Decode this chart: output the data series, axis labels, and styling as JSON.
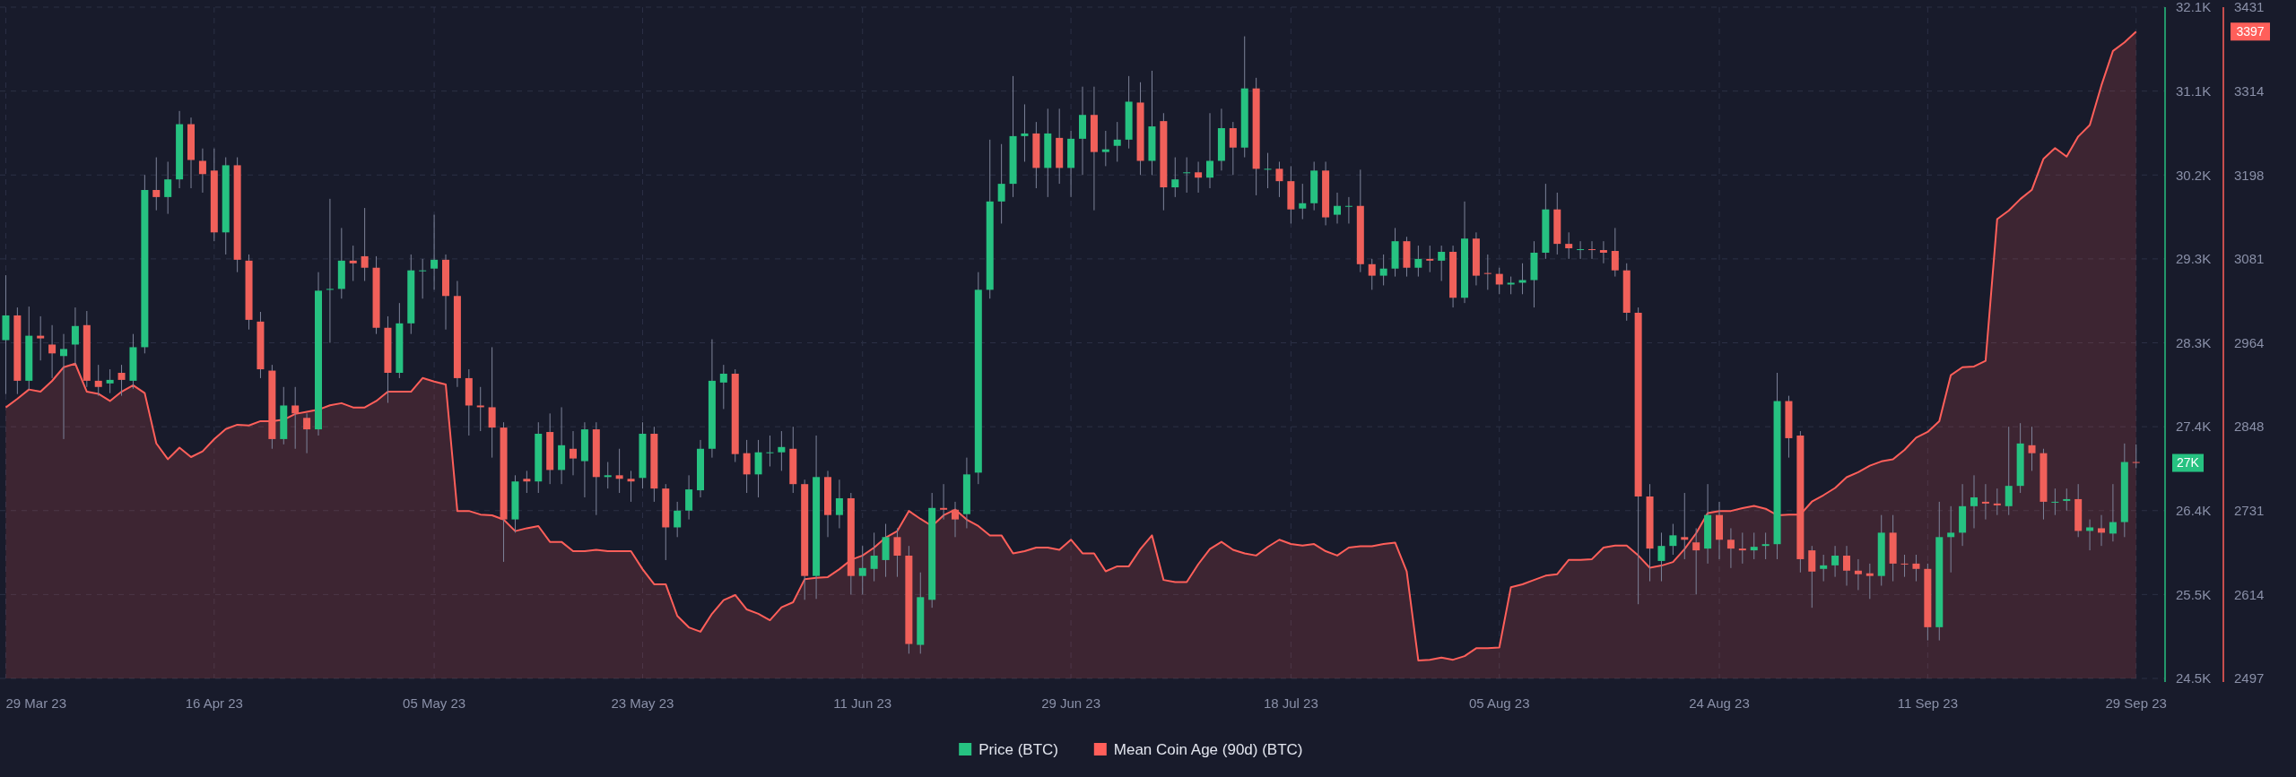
{
  "chart_data": {
    "type": "candlestick",
    "grid": true,
    "annotations": [
      "3397"
    ],
    "legend": "bottom",
    "x": [
      "2023-03-29",
      "2023-03-30",
      "2023-03-31",
      "2023-04-01",
      "2023-04-02",
      "2023-04-03",
      "2023-04-04",
      "2023-04-05",
      "2023-04-06",
      "2023-04-07",
      "2023-04-08",
      "2023-04-09",
      "2023-04-10",
      "2023-04-11",
      "2023-04-12",
      "2023-04-13",
      "2023-04-14",
      "2023-04-15",
      "2023-04-16",
      "2023-04-17",
      "2023-04-18",
      "2023-04-19",
      "2023-04-20",
      "2023-04-21",
      "2023-04-22",
      "2023-04-23",
      "2023-04-24",
      "2023-04-25",
      "2023-04-26",
      "2023-04-27",
      "2023-04-28",
      "2023-04-29",
      "2023-04-30",
      "2023-05-01",
      "2023-05-02",
      "2023-05-03",
      "2023-05-04",
      "2023-05-05",
      "2023-05-06",
      "2023-05-07",
      "2023-05-08",
      "2023-05-09",
      "2023-05-10",
      "2023-05-11",
      "2023-05-12",
      "2023-05-13",
      "2023-05-14",
      "2023-05-15",
      "2023-05-16",
      "2023-05-17",
      "2023-05-18",
      "2023-05-19",
      "2023-05-20",
      "2023-05-21",
      "2023-05-22",
      "2023-05-23",
      "2023-05-24",
      "2023-05-25",
      "2023-05-26",
      "2023-05-27",
      "2023-05-28",
      "2023-05-29",
      "2023-05-30",
      "2023-05-31",
      "2023-06-01",
      "2023-06-02",
      "2023-06-03",
      "2023-06-04",
      "2023-06-05",
      "2023-06-06",
      "2023-06-07",
      "2023-06-08",
      "2023-06-09",
      "2023-06-10",
      "2023-06-11",
      "2023-06-12",
      "2023-06-13",
      "2023-06-14",
      "2023-06-15",
      "2023-06-16",
      "2023-06-17",
      "2023-06-18",
      "2023-06-19",
      "2023-06-20",
      "2023-06-21",
      "2023-06-22",
      "2023-06-23",
      "2023-06-24",
      "2023-06-25",
      "2023-06-26",
      "2023-06-27",
      "2023-06-28",
      "2023-06-29",
      "2023-06-30",
      "2023-07-01",
      "2023-07-02",
      "2023-07-03",
      "2023-07-04",
      "2023-07-05",
      "2023-07-06",
      "2023-07-07",
      "2023-07-08",
      "2023-07-09",
      "2023-07-10",
      "2023-07-11",
      "2023-07-12",
      "2023-07-13",
      "2023-07-14",
      "2023-07-15",
      "2023-07-16",
      "2023-07-17",
      "2023-07-18",
      "2023-07-19",
      "2023-07-20",
      "2023-07-21",
      "2023-07-22",
      "2023-07-23",
      "2023-07-24",
      "2023-07-25",
      "2023-07-26",
      "2023-07-27",
      "2023-07-28",
      "2023-07-29",
      "2023-07-30",
      "2023-07-31",
      "2023-08-01",
      "2023-08-02",
      "2023-08-03",
      "2023-08-04",
      "2023-08-05",
      "2023-08-06",
      "2023-08-07",
      "2023-08-08",
      "2023-08-09",
      "2023-08-10",
      "2023-08-11",
      "2023-08-12",
      "2023-08-13",
      "2023-08-14",
      "2023-08-15",
      "2023-08-16",
      "2023-08-17",
      "2023-08-18",
      "2023-08-19",
      "2023-08-20",
      "2023-08-21",
      "2023-08-22",
      "2023-08-23",
      "2023-08-24",
      "2023-08-25",
      "2023-08-26",
      "2023-08-27",
      "2023-08-28",
      "2023-08-29",
      "2023-08-30",
      "2023-08-31",
      "2023-09-01",
      "2023-09-02",
      "2023-09-03",
      "2023-09-04",
      "2023-09-05",
      "2023-09-06",
      "2023-09-07",
      "2023-09-08",
      "2023-09-09",
      "2023-09-10",
      "2023-09-11",
      "2023-09-12",
      "2023-09-13",
      "2023-09-14",
      "2023-09-15",
      "2023-09-16",
      "2023-09-17",
      "2023-09-18",
      "2023-09-19",
      "2023-09-20",
      "2023-09-21",
      "2023-09-22",
      "2023-09-23",
      "2023-09-24",
      "2023-09-25",
      "2023-09-26",
      "2023-09-27",
      "2023-09-28",
      "2023-09-29"
    ],
    "xlim": [
      "2023-03-28T12:00",
      "2023-10-01T12:00"
    ],
    "xticks": [
      {
        "value": "2023-03-29",
        "label": "29 Mar 23"
      },
      {
        "value": "2023-04-16",
        "label": "16 Apr 23"
      },
      {
        "value": "2023-05-05",
        "label": "05 May 23"
      },
      {
        "value": "2023-05-23",
        "label": "23 May 23"
      },
      {
        "value": "2023-06-11",
        "label": "11 Jun 23"
      },
      {
        "value": "2023-06-29",
        "label": "29 Jun 23"
      },
      {
        "value": "2023-07-18",
        "label": "18 Jul 23"
      },
      {
        "value": "2023-08-05",
        "label": "05 Aug 23"
      },
      {
        "value": "2023-08-24",
        "label": "24 Aug 23"
      },
      {
        "value": "2023-09-11",
        "label": "11 Sep 23"
      },
      {
        "value": "2023-09-29",
        "label": "29 Sep 23"
      }
    ],
    "ylim": [
      24500,
      32100
    ],
    "yticks": [
      {
        "value": 24500,
        "label": "24.5K"
      },
      {
        "value": 25450,
        "label": "25.5K"
      },
      {
        "value": 26400,
        "label": "26.4K"
      },
      {
        "value": 27350,
        "label": "27.4K"
      },
      {
        "value": 28300,
        "label": "28.3K"
      },
      {
        "value": 29250,
        "label": "29.3K"
      },
      {
        "value": 30200,
        "label": "30.2K"
      },
      {
        "value": 31150,
        "label": "31.1K"
      },
      {
        "value": 32100,
        "label": "32.1K"
      }
    ],
    "y2lim": [
      2497,
      3431
    ],
    "y2ticks": [
      2497,
      {
        "value": 2613.75,
        "label": "2614"
      },
      {
        "value": 2730.5,
        "label": "2731"
      },
      {
        "value": 2848,
        "label": "2848"
      },
      2964,
      {
        "value": 3080.75,
        "label": "3081"
      },
      {
        "value": 3197.5,
        "label": "3198"
      },
      {
        "value": 3314.25,
        "label": "3314"
      },
      3431
    ],
    "series": [
      {
        "name": "Price (BTC)",
        "color": "#26c281",
        "colors": [
          "#26c281",
          "#f0605a",
          "#26c281",
          "#f0605a",
          "#f0605a",
          "#26c281",
          "#26c281",
          "#f0605a",
          "#f0605a",
          "#26c281",
          "#f0605a",
          "#26c281",
          "#26c281",
          "#f0605a",
          "#26c281",
          "#26c281",
          "#f0605a",
          "#f0605a",
          "#f0605a",
          "#26c281",
          "#f0605a",
          "#f0605a",
          "#f0605a",
          "#f0605a",
          "#26c281",
          "#f0605a",
          "#f0605a",
          "#26c281",
          "#26c281",
          "#26c281",
          "#f0605a",
          "#f0605a",
          "#f0605a",
          "#f0605a",
          "#26c281",
          "#26c281",
          "#26c281",
          "#26c281",
          "#f0605a",
          "#f0605a",
          "#f0605a",
          "#f0605a",
          "#f0605a",
          "#f0605a",
          "#26c281",
          "#f0605a",
          "#26c281",
          "#f0605a",
          "#26c281",
          "#f0605a",
          "#26c281",
          "#f0605a",
          "#26c281",
          "#f0605a",
          "#f0605a",
          "#26c281",
          "#f0605a",
          "#f0605a",
          "#26c281",
          "#26c281",
          "#26c281",
          "#26c281",
          "#26c281",
          "#f0605a",
          "#f0605a",
          "#26c281",
          "#26c281",
          "#26c281",
          "#f0605a",
          "#f0605a",
          "#26c281",
          "#f0605a",
          "#26c281",
          "#f0605a",
          "#26c281",
          "#26c281",
          "#26c281",
          "#f0605a",
          "#f0605a",
          "#26c281",
          "#26c281",
          "#f0605a",
          "#f0605a",
          "#26c281",
          "#26c281",
          "#26c281",
          "#26c281",
          "#26c281",
          "#26c281",
          "#f0605a",
          "#26c281",
          "#f0605a",
          "#26c281",
          "#26c281",
          "#f0605a",
          "#26c281",
          "#26c281",
          "#26c281",
          "#f0605a",
          "#26c281",
          "#f0605a",
          "#26c281",
          "#26c281",
          "#f0605a",
          "#26c281",
          "#26c281",
          "#f0605a",
          "#26c281",
          "#f0605a",
          "#26c281",
          "#f0605a",
          "#f0605a",
          "#26c281",
          "#26c281",
          "#f0605a",
          "#26c281",
          "#26c281",
          "#f0605a",
          "#f0605a",
          "#26c281",
          "#26c281",
          "#f0605a",
          "#26c281",
          "#f0605a",
          "#26c281",
          "#f0605a",
          "#26c281",
          "#f0605a",
          "#f0605a",
          "#f0605a",
          "#26c281",
          "#26c281",
          "#26c281",
          "#26c281",
          "#f0605a",
          "#f0605a",
          "#26c281",
          "#f0605a",
          "#f0605a",
          "#f0605a",
          "#f0605a",
          "#f0605a",
          "#f0605a",
          "#26c281",
          "#26c281",
          "#f0605a",
          "#f0605a",
          "#26c281",
          "#f0605a",
          "#f0605a",
          "#f0605a",
          "#26c281",
          "#26c281",
          "#26c281",
          "#f0605a",
          "#f0605a",
          "#f0605a",
          "#26c281",
          "#26c281",
          "#f0605a",
          "#f0605a",
          "#f0605a",
          "#26c281",
          "#f0605a",
          "#f0605a",
          "#f0605a",
          "#f0605a",
          "#26c281",
          "#26c281",
          "#26c281",
          "#26c281",
          "#f0605a",
          "#f0605a",
          "#26c281",
          "#26c281",
          "#f0605a",
          "#f0605a",
          "#26c281",
          "#26c281",
          "#f0605a",
          "#26c281",
          "#f0605a",
          "#26c281",
          "#26c281",
          "#f0605a"
        ],
        "ohlc": [
          [
            28330,
            29065,
            27720,
            28610
          ],
          [
            28610,
            28700,
            27720,
            27870
          ],
          [
            27870,
            28710,
            27770,
            28380
          ],
          [
            28380,
            28600,
            28100,
            28350
          ],
          [
            28280,
            28500,
            27900,
            28180
          ],
          [
            28150,
            28400,
            27210,
            28230
          ],
          [
            28280,
            28700,
            28050,
            28490
          ],
          [
            28500,
            28660,
            27800,
            27870
          ],
          [
            27870,
            28050,
            27700,
            27800
          ],
          [
            27840,
            28000,
            27730,
            27880
          ],
          [
            27960,
            28050,
            27700,
            27880
          ],
          [
            27870,
            28400,
            27780,
            28250
          ],
          [
            28250,
            30200,
            28180,
            30030
          ],
          [
            30030,
            30400,
            29800,
            29950
          ],
          [
            29950,
            30350,
            29760,
            30150
          ],
          [
            30150,
            30925,
            30050,
            30775
          ],
          [
            30775,
            30850,
            30050,
            30370
          ],
          [
            30360,
            30500,
            30000,
            30210
          ],
          [
            30250,
            30500,
            29450,
            29550
          ],
          [
            29550,
            30400,
            29300,
            30310
          ],
          [
            30310,
            30400,
            29100,
            29240
          ],
          [
            29230,
            29300,
            28450,
            28560
          ],
          [
            28540,
            28650,
            27900,
            28000
          ],
          [
            27985,
            28050,
            27100,
            27210
          ],
          [
            27210,
            27800,
            27150,
            27590
          ],
          [
            27590,
            27800,
            27100,
            27500
          ],
          [
            27450,
            27500,
            27050,
            27320
          ],
          [
            27320,
            29100,
            27250,
            28890
          ],
          [
            28910,
            29930,
            28300,
            28910
          ],
          [
            28910,
            29600,
            28800,
            29230
          ],
          [
            29230,
            29400,
            29000,
            29200
          ],
          [
            29280,
            29826,
            29000,
            29150
          ],
          [
            29150,
            29280,
            28400,
            28470
          ],
          [
            28470,
            28600,
            27620,
            27960
          ],
          [
            27960,
            28750,
            27900,
            28520
          ],
          [
            28520,
            29300,
            28400,
            29120
          ],
          [
            29120,
            29250,
            28800,
            29120
          ],
          [
            29140,
            29750,
            28900,
            29240
          ],
          [
            29240,
            29300,
            28450,
            28830
          ],
          [
            28830,
            29000,
            27800,
            27900
          ],
          [
            27900,
            28000,
            27250,
            27590
          ],
          [
            27590,
            27800,
            27300,
            27570
          ],
          [
            27570,
            28250,
            27000,
            27340
          ],
          [
            27340,
            27400,
            25820,
            26300
          ],
          [
            26300,
            26800,
            26150,
            26730
          ],
          [
            26760,
            26850,
            26600,
            26730
          ],
          [
            26730,
            27400,
            26600,
            27270
          ],
          [
            27290,
            27500,
            26700,
            26860
          ],
          [
            26860,
            27570,
            26700,
            27140
          ],
          [
            27100,
            27300,
            26800,
            26990
          ],
          [
            26960,
            27400,
            26550,
            27320
          ],
          [
            27320,
            27400,
            26350,
            26780
          ],
          [
            26780,
            26950,
            26650,
            26800
          ],
          [
            26800,
            27100,
            26600,
            26760
          ],
          [
            26760,
            26850,
            26500,
            26730
          ],
          [
            26770,
            27400,
            26650,
            27270
          ],
          [
            27270,
            27350,
            26500,
            26650
          ],
          [
            26650,
            26700,
            25840,
            26210
          ],
          [
            26210,
            26500,
            26100,
            26400
          ],
          [
            26400,
            26800,
            26300,
            26640
          ],
          [
            26630,
            27200,
            26550,
            27100
          ],
          [
            27100,
            28340,
            27000,
            27870
          ],
          [
            27850,
            28050,
            27550,
            27950
          ],
          [
            27950,
            28000,
            26950,
            27040
          ],
          [
            27050,
            27200,
            26600,
            26810
          ],
          [
            26810,
            27200,
            26550,
            27060
          ],
          [
            27060,
            27250,
            26900,
            27060
          ],
          [
            27060,
            27300,
            26850,
            27120
          ],
          [
            27100,
            27350,
            26600,
            26700
          ],
          [
            26700,
            26750,
            25390,
            25660
          ],
          [
            25660,
            27250,
            25400,
            26780
          ],
          [
            26780,
            26850,
            26100,
            26350
          ],
          [
            26350,
            26750,
            26200,
            26540
          ],
          [
            26540,
            26600,
            25450,
            25660
          ],
          [
            25660,
            26000,
            25450,
            25750
          ],
          [
            25740,
            26150,
            25600,
            25890
          ],
          [
            25840,
            26250,
            25650,
            26100
          ],
          [
            26100,
            26200,
            25650,
            25890
          ],
          [
            25890,
            26000,
            24780,
            24890
          ],
          [
            24880,
            25700,
            24780,
            25420
          ],
          [
            25390,
            26600,
            25300,
            26430
          ],
          [
            26430,
            26700,
            26300,
            26410
          ],
          [
            26410,
            26500,
            26100,
            26300
          ],
          [
            26360,
            27000,
            26200,
            26810
          ],
          [
            26830,
            29100,
            26700,
            28900
          ],
          [
            28900,
            30600,
            28800,
            29900
          ],
          [
            29900,
            30550,
            29650,
            30100
          ],
          [
            30100,
            31320,
            29950,
            30640
          ],
          [
            30640,
            31000,
            30350,
            30670
          ],
          [
            30670,
            30800,
            30050,
            30280
          ],
          [
            30280,
            30950,
            29950,
            30670
          ],
          [
            30620,
            30950,
            30100,
            30280
          ],
          [
            30280,
            30700,
            29950,
            30610
          ],
          [
            30610,
            31200,
            30200,
            30880
          ],
          [
            30880,
            31200,
            29800,
            30460
          ],
          [
            30460,
            30700,
            30300,
            30490
          ],
          [
            30530,
            30800,
            30350,
            30600
          ],
          [
            30600,
            31320,
            30500,
            31030
          ],
          [
            31020,
            31250,
            30200,
            30360
          ],
          [
            30360,
            31380,
            30200,
            30750
          ],
          [
            30810,
            30900,
            29800,
            30060
          ],
          [
            30060,
            30400,
            29950,
            30150
          ],
          [
            30220,
            30400,
            30000,
            30230
          ],
          [
            30230,
            30350,
            30000,
            30170
          ],
          [
            30170,
            30900,
            30050,
            30360
          ],
          [
            30360,
            30950,
            30250,
            30730
          ],
          [
            30730,
            30800,
            30200,
            30510
          ],
          [
            30510,
            31770,
            30400,
            31180
          ],
          [
            31180,
            31300,
            29970,
            30270
          ],
          [
            30270,
            30450,
            30050,
            30270
          ],
          [
            30270,
            30350,
            29950,
            30130
          ],
          [
            30130,
            30300,
            29650,
            29810
          ],
          [
            29820,
            30100,
            29700,
            29880
          ],
          [
            29880,
            30350,
            29800,
            30250
          ],
          [
            30250,
            30350,
            29630,
            29720
          ],
          [
            29750,
            30000,
            29650,
            29850
          ],
          [
            29850,
            29950,
            29650,
            29850
          ],
          [
            29850,
            30260,
            29100,
            29190
          ],
          [
            29190,
            29250,
            28900,
            29060
          ],
          [
            29060,
            29300,
            28950,
            29140
          ],
          [
            29140,
            29600,
            29050,
            29450
          ],
          [
            29450,
            29500,
            29050,
            29150
          ],
          [
            29150,
            29400,
            29050,
            29250
          ],
          [
            29250,
            29400,
            29100,
            29230
          ],
          [
            29230,
            29400,
            29000,
            29330
          ],
          [
            29330,
            29400,
            28700,
            28810
          ],
          [
            28810,
            29900,
            28750,
            29480
          ],
          [
            29480,
            29550,
            28950,
            29060
          ],
          [
            29090,
            29300,
            28900,
            29080
          ],
          [
            29080,
            29150,
            28850,
            28960
          ],
          [
            28960,
            29050,
            28850,
            28980
          ],
          [
            28980,
            29200,
            28850,
            29010
          ],
          [
            29010,
            29450,
            28700,
            29320
          ],
          [
            29320,
            30100,
            29250,
            29810
          ],
          [
            29810,
            30000,
            29300,
            29420
          ],
          [
            29420,
            29550,
            29250,
            29370
          ],
          [
            29360,
            29450,
            29250,
            29360
          ],
          [
            29360,
            29450,
            29250,
            29350
          ],
          [
            29350,
            29450,
            29200,
            29320
          ],
          [
            29340,
            29600,
            29050,
            29120
          ],
          [
            29120,
            29200,
            28550,
            28640
          ],
          [
            28640,
            28700,
            25340,
            26560
          ],
          [
            26560,
            26700,
            25600,
            25970
          ],
          [
            25830,
            26150,
            25600,
            26000
          ],
          [
            26000,
            26250,
            25900,
            26120
          ],
          [
            26100,
            26600,
            25850,
            26070
          ],
          [
            26040,
            26200,
            25450,
            25950
          ],
          [
            25970,
            26700,
            25800,
            26350
          ],
          [
            26350,
            26500,
            25850,
            26070
          ],
          [
            26070,
            26200,
            25750,
            25970
          ],
          [
            25970,
            26150,
            25800,
            25950
          ],
          [
            25950,
            26150,
            25850,
            25990
          ],
          [
            26000,
            26150,
            25850,
            26020
          ],
          [
            26020,
            27960,
            25850,
            27640
          ],
          [
            27640,
            27700,
            27000,
            27220
          ],
          [
            27250,
            27300,
            25700,
            25850
          ],
          [
            25950,
            26000,
            25300,
            25710
          ],
          [
            25740,
            25900,
            25600,
            25780
          ],
          [
            25780,
            26000,
            25650,
            25890
          ],
          [
            25890,
            26000,
            25550,
            25720
          ],
          [
            25720,
            25850,
            25500,
            25680
          ],
          [
            25690,
            25800,
            25400,
            25660
          ],
          [
            25660,
            26350,
            25550,
            26150
          ],
          [
            26150,
            26350,
            25600,
            25800
          ],
          [
            25800,
            25900,
            25650,
            25790
          ],
          [
            25800,
            25900,
            25600,
            25740
          ],
          [
            25740,
            25800,
            24930,
            25080
          ],
          [
            25080,
            26500,
            24930,
            26100
          ],
          [
            26100,
            26450,
            25700,
            26150
          ],
          [
            26150,
            26700,
            26000,
            26450
          ],
          [
            26450,
            26800,
            26200,
            26550
          ],
          [
            26500,
            26700,
            26300,
            26480
          ],
          [
            26480,
            26650,
            26350,
            26460
          ],
          [
            26450,
            27350,
            26350,
            26680
          ],
          [
            26680,
            27390,
            26600,
            27160
          ],
          [
            27140,
            27350,
            26850,
            27050
          ],
          [
            27050,
            27100,
            26300,
            26500
          ],
          [
            26500,
            26650,
            26350,
            26500
          ],
          [
            26510,
            26650,
            26400,
            26530
          ],
          [
            26530,
            26700,
            26100,
            26170
          ],
          [
            26170,
            26300,
            25950,
            26210
          ],
          [
            26200,
            26350,
            26000,
            26150
          ],
          [
            26140,
            26700,
            26050,
            26270
          ],
          [
            26270,
            27160,
            26100,
            26950
          ],
          [
            26950,
            27150,
            26880,
            26940
          ]
        ],
        "value_labels": [
          null,
          null,
          null,
          null,
          null,
          null,
          null,
          null,
          null,
          null,
          null,
          null,
          null,
          null,
          null,
          null,
          null,
          null,
          null,
          null,
          null,
          null,
          null,
          null,
          null,
          null,
          null,
          null,
          null,
          null,
          null,
          null,
          null,
          null,
          null,
          null,
          null,
          null,
          null,
          null,
          null,
          null,
          null,
          null,
          null,
          null,
          null,
          null,
          null,
          null,
          null,
          null,
          null,
          null,
          null,
          null,
          null,
          null,
          null,
          null,
          null,
          null,
          null,
          null,
          null,
          null,
          null,
          null,
          null,
          null,
          null,
          null,
          null,
          null,
          null,
          null,
          null,
          null,
          null,
          null,
          null,
          null,
          null,
          null,
          null,
          null,
          null,
          null,
          null,
          null,
          null,
          null,
          null,
          null,
          null,
          null,
          null,
          null,
          null,
          null,
          null,
          null,
          null,
          null,
          null,
          null,
          null,
          null,
          null,
          null,
          null,
          null,
          null,
          null,
          null,
          null,
          null,
          null,
          null,
          null,
          null,
          null,
          null,
          null,
          null,
          null,
          null,
          null,
          null,
          null,
          null,
          null,
          null,
          null,
          null,
          null,
          null,
          null,
          null,
          null,
          null,
          null,
          null,
          null,
          null,
          null,
          null,
          null,
          null,
          null,
          null,
          null,
          null,
          null,
          null,
          null,
          null,
          null,
          null,
          null,
          null,
          null,
          null,
          null,
          null,
          null,
          null,
          null,
          null,
          null,
          null,
          null,
          null,
          null,
          null,
          null,
          null,
          null,
          null,
          null,
          null,
          null,
          null,
          null,
          "27K"
        ]
      },
      {
        "name": "Mean Coin Age (90d) (BTC)",
        "type": "area",
        "axis": "y2",
        "color": "#ff5f5a",
        "values": [
          2874,
          2886,
          2899,
          2896,
          2911,
          2930,
          2935,
          2896,
          2893,
          2883,
          2896,
          2905,
          2894,
          2824,
          2802,
          2818,
          2805,
          2813,
          2830,
          2844,
          2850,
          2849,
          2855,
          2855,
          2857,
          2865,
          2868,
          2871,
          2877,
          2880,
          2874,
          2874,
          2883,
          2896,
          2896,
          2896,
          2915,
          2910,
          2906,
          2730,
          2730,
          2725,
          2724,
          2718,
          2702,
          2706,
          2709,
          2687,
          2687,
          2674,
          2674,
          2676,
          2674,
          2674,
          2674,
          2649,
          2628,
          2628,
          2584,
          2568,
          2562,
          2587,
          2606,
          2613,
          2593,
          2587,
          2578,
          2596,
          2603,
          2635,
          2637,
          2638,
          2649,
          2662,
          2668,
          2679,
          2693,
          2702,
          2730,
          2719,
          2709,
          2724,
          2732,
          2718,
          2709,
          2696,
          2696,
          2671,
          2674,
          2679,
          2679,
          2676,
          2690,
          2671,
          2671,
          2646,
          2653,
          2653,
          2677,
          2696,
          2634,
          2631,
          2631,
          2656,
          2677,
          2687,
          2676,
          2671,
          2668,
          2680,
          2690,
          2684,
          2682,
          2684,
          2674,
          2668,
          2679,
          2681,
          2681,
          2684,
          2686,
          2646,
          2522,
          2523,
          2526,
          2523,
          2528,
          2539,
          2539,
          2540,
          2624,
          2628,
          2634,
          2640,
          2642,
          2662,
          2662,
          2663,
          2679,
          2682,
          2682,
          2668,
          2651,
          2654,
          2659,
          2677,
          2699,
          2727,
          2730,
          2730,
          2734,
          2737,
          2733,
          2724,
          2725,
          2725,
          2743,
          2752,
          2762,
          2777,
          2784,
          2793,
          2799,
          2802,
          2815,
          2832,
          2840,
          2855,
          2919,
          2930,
          2931,
          2939,
          3136,
          3148,
          3164,
          3177,
          3220,
          3235,
          3223,
          3251,
          3267,
          3322,
          3370,
          3382,
          3397
        ],
        "value_labels": [
          null,
          null,
          null,
          null,
          null,
          null,
          null,
          null,
          null,
          null,
          null,
          null,
          null,
          null,
          null,
          null,
          null,
          null,
          null,
          null,
          null,
          null,
          null,
          null,
          null,
          null,
          null,
          null,
          null,
          null,
          null,
          null,
          null,
          null,
          null,
          null,
          null,
          null,
          null,
          null,
          null,
          null,
          null,
          null,
          null,
          null,
          null,
          null,
          null,
          null,
          null,
          null,
          null,
          null,
          null,
          null,
          null,
          null,
          null,
          null,
          null,
          null,
          null,
          null,
          null,
          null,
          null,
          null,
          null,
          null,
          null,
          null,
          null,
          null,
          null,
          null,
          null,
          null,
          null,
          null,
          null,
          null,
          null,
          null,
          null,
          null,
          null,
          null,
          null,
          null,
          null,
          null,
          null,
          null,
          null,
          null,
          null,
          null,
          null,
          null,
          null,
          null,
          null,
          null,
          null,
          null,
          null,
          null,
          null,
          null,
          null,
          null,
          null,
          null,
          null,
          null,
          null,
          null,
          null,
          null,
          null,
          null,
          null,
          null,
          null,
          null,
          null,
          null,
          null,
          null,
          null,
          null,
          null,
          null,
          null,
          null,
          null,
          null,
          null,
          null,
          null,
          null,
          null,
          null,
          null,
          null,
          null,
          null,
          null,
          null,
          null,
          null,
          null,
          null,
          null,
          null,
          null,
          null,
          null,
          null,
          null,
          null,
          null,
          null,
          null,
          null,
          null,
          null,
          null,
          null,
          null,
          null,
          null,
          null,
          null,
          null,
          null,
          null,
          null,
          null,
          null,
          null,
          null,
          null,
          null
        ]
      }
    ]
  }
}
